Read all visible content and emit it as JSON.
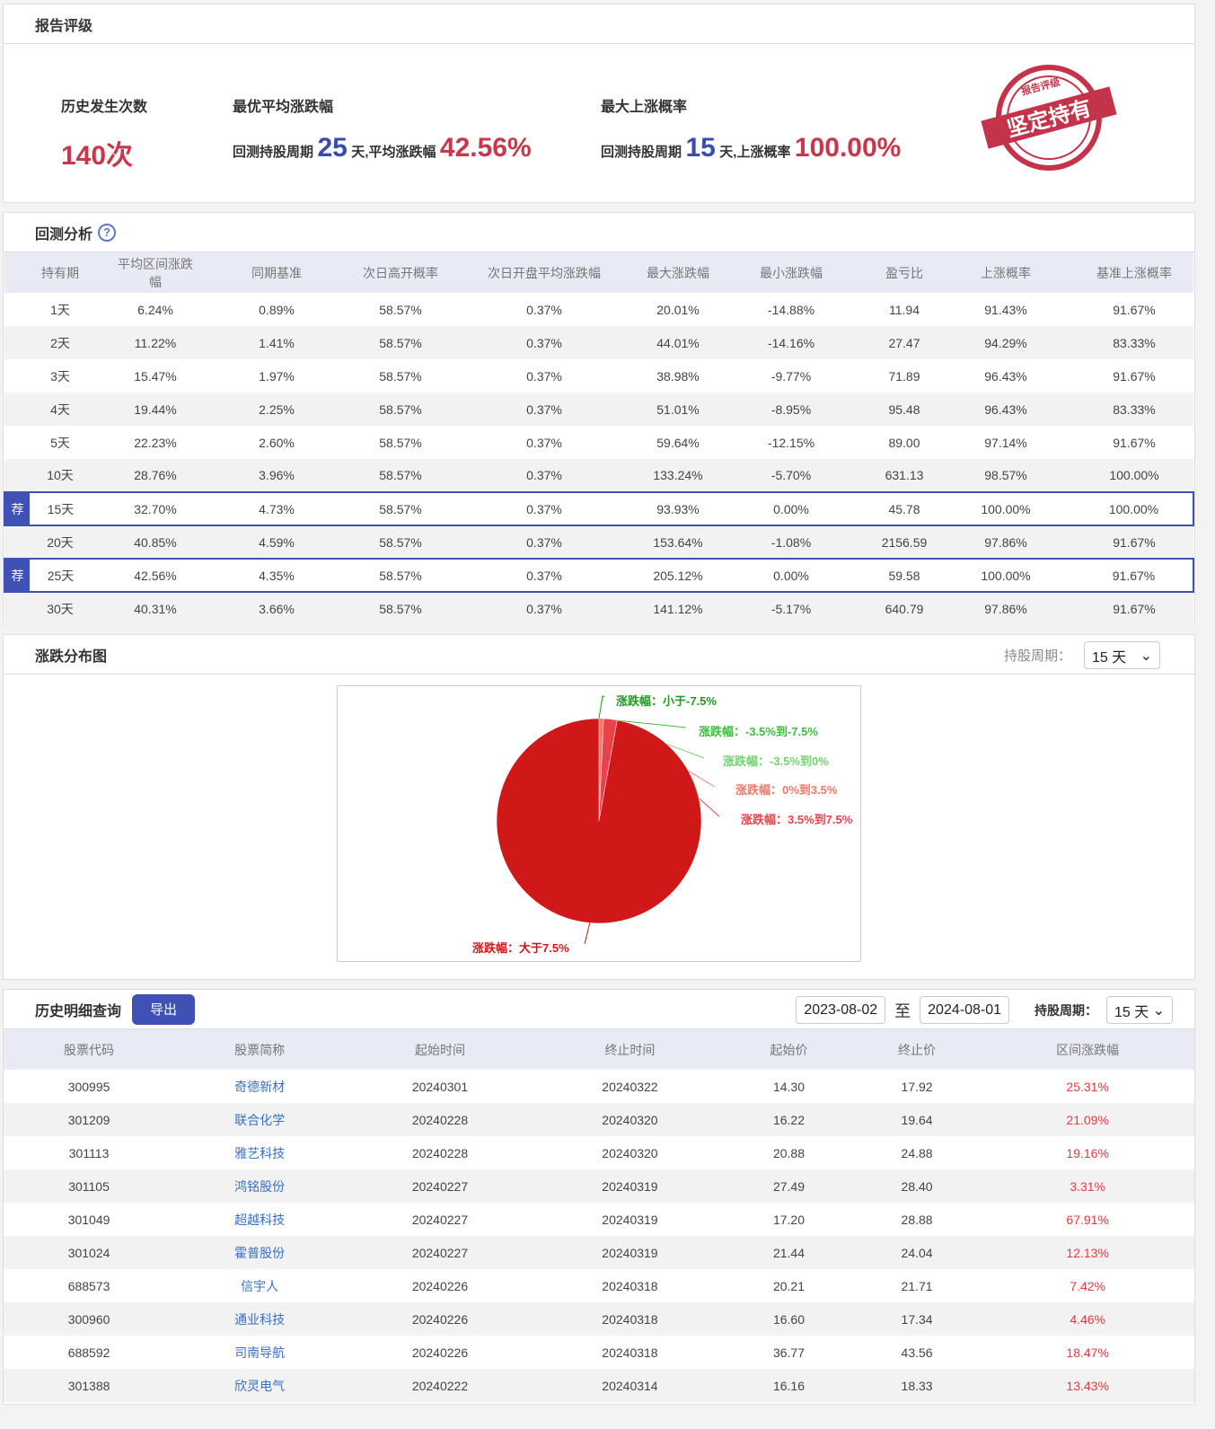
{
  "rating": {
    "title": "报告评级",
    "count_label": "历史发生次数",
    "count_value": "140次",
    "best_avg_label": "最优平均涨跌幅",
    "best_prefix": "回测持股周期",
    "best_days": "25",
    "best_mid": "天,平均涨跌幅",
    "best_value": "42.56%",
    "max_up_label": "最大上涨概率",
    "up_prefix": "回测持股周期",
    "up_days": "15",
    "up_mid": "天,上涨概率",
    "up_value": "100.00%",
    "stamp_top": "报告评级",
    "stamp_main": "坚定持有"
  },
  "backtest": {
    "title": "回测分析",
    "help_icon": "?",
    "badge": "荐",
    "columns": [
      "持有期",
      "平均区间涨跌幅",
      "同期基准",
      "次日高开概率",
      "次日开盘平均涨跌幅",
      "最大涨跌幅",
      "最小涨跌幅",
      "盈亏比",
      "上涨概率",
      "基准上涨概率"
    ],
    "rows": [
      [
        "1天",
        "6.24%",
        "0.89%",
        "58.57%",
        "0.37%",
        "20.01%",
        "-14.88%",
        "11.94",
        "91.43%",
        "91.67%"
      ],
      [
        "2天",
        "11.22%",
        "1.41%",
        "58.57%",
        "0.37%",
        "44.01%",
        "-14.16%",
        "27.47",
        "94.29%",
        "83.33%"
      ],
      [
        "3天",
        "15.47%",
        "1.97%",
        "58.57%",
        "0.37%",
        "38.98%",
        "-9.77%",
        "71.89",
        "96.43%",
        "91.67%"
      ],
      [
        "4天",
        "19.44%",
        "2.25%",
        "58.57%",
        "0.37%",
        "51.01%",
        "-8.95%",
        "95.48",
        "96.43%",
        "83.33%"
      ],
      [
        "5天",
        "22.23%",
        "2.60%",
        "58.57%",
        "0.37%",
        "59.64%",
        "-12.15%",
        "89.00",
        "97.14%",
        "91.67%"
      ],
      [
        "10天",
        "28.76%",
        "3.96%",
        "58.57%",
        "0.37%",
        "133.24%",
        "-5.70%",
        "631.13",
        "98.57%",
        "100.00%"
      ],
      [
        "15天",
        "32.70%",
        "4.73%",
        "58.57%",
        "0.37%",
        "93.93%",
        "0.00%",
        "45.78",
        "100.00%",
        "100.00%"
      ],
      [
        "20天",
        "40.85%",
        "4.59%",
        "58.57%",
        "0.37%",
        "153.64%",
        "-1.08%",
        "2156.59",
        "97.86%",
        "91.67%"
      ],
      [
        "25天",
        "42.56%",
        "4.35%",
        "58.57%",
        "0.37%",
        "205.12%",
        "0.00%",
        "59.58",
        "100.00%",
        "91.67%"
      ],
      [
        "30天",
        "40.31%",
        "3.66%",
        "58.57%",
        "0.37%",
        "141.12%",
        "-5.17%",
        "640.79",
        "97.86%",
        "91.67%"
      ]
    ],
    "recommended": [
      6,
      8
    ]
  },
  "distribution": {
    "title": "涨跌分布图",
    "period_label": "持股周期：",
    "period_value": "15 天"
  },
  "chart_data": {
    "type": "pie",
    "categories": [
      "涨跌幅：小于-7.5%",
      "涨跌幅：-3.5%到-7.5%",
      "涨跌幅：-3.5%到0%",
      "涨跌幅：0%到3.5%",
      "涨跌幅：3.5%到7.5%",
      "涨跌幅：大于7.5%"
    ],
    "values": [
      0,
      0,
      0,
      1,
      3,
      136
    ],
    "colors": [
      "#1f9a1f",
      "#3cbf3c",
      "#6fd36f",
      "#f07a6a",
      "#e8434a",
      "#d01818"
    ]
  },
  "history": {
    "title": "历史明细查询",
    "export_label": "导出",
    "date_from": "2023-08-02",
    "to_label": "至",
    "date_to": "2024-08-01",
    "period_label": "持股周期：",
    "period_value": "15 天",
    "columns": [
      "股票代码",
      "股票简称",
      "起始时间",
      "终止时间",
      "起始价",
      "终止价",
      "区间涨跌幅"
    ],
    "rows": [
      [
        "300995",
        "奇德新材",
        "20240301",
        "20240322",
        "14.30",
        "17.92",
        "25.31%"
      ],
      [
        "301209",
        "联合化学",
        "20240228",
        "20240320",
        "16.22",
        "19.64",
        "21.09%"
      ],
      [
        "301113",
        "雅艺科技",
        "20240228",
        "20240320",
        "20.88",
        "24.88",
        "19.16%"
      ],
      [
        "301105",
        "鸿铭股份",
        "20240227",
        "20240319",
        "27.49",
        "28.40",
        "3.31%"
      ],
      [
        "301049",
        "超越科技",
        "20240227",
        "20240319",
        "17.20",
        "28.88",
        "67.91%"
      ],
      [
        "301024",
        "霍普股份",
        "20240227",
        "20240319",
        "21.44",
        "24.04",
        "12.13%"
      ],
      [
        "688573",
        "信宇人",
        "20240226",
        "20240318",
        "20.21",
        "21.71",
        "7.42%"
      ],
      [
        "300960",
        "通业科技",
        "20240226",
        "20240318",
        "16.60",
        "17.34",
        "4.46%"
      ],
      [
        "688592",
        "司南导航",
        "20240226",
        "20240318",
        "36.77",
        "43.56",
        "18.47%"
      ],
      [
        "301388",
        "欣灵电气",
        "20240222",
        "20240314",
        "16.16",
        "18.33",
        "13.43%"
      ]
    ]
  }
}
